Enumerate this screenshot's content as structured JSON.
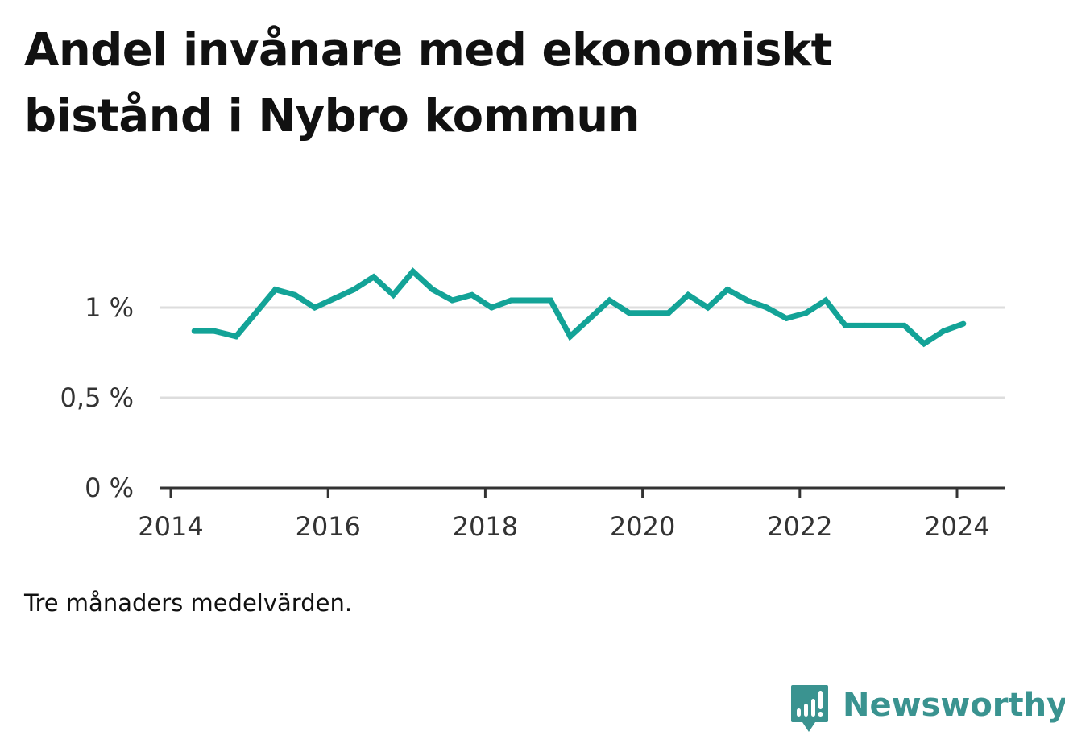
{
  "header": {
    "title": "Andel invånare med ekonomiskt bistånd i Nybro kommun"
  },
  "footer": {
    "note": "Tre månaders medelvärden.",
    "brand_name": "Newsworthy",
    "brand_color": "#3a9390",
    "brand_icon": "bar-chart-speech-bubble-icon"
  },
  "chart_data": {
    "type": "line",
    "title": "Andel invånare med ekonomiskt bistånd i Nybro kommun",
    "xlabel": "",
    "ylabel": "",
    "x_ticks": [
      "2014",
      "2016",
      "2018",
      "2020",
      "2022",
      "2024"
    ],
    "y_ticks": [
      "0 %",
      "0,5 %",
      "1 %"
    ],
    "ylim": [
      0,
      1.35
    ],
    "xlim": [
      2014,
      2024.6
    ],
    "grid": true,
    "series": [
      {
        "color": "#13a397",
        "points": [
          [
            2014.3,
            0.87
          ],
          [
            2014.55,
            0.87
          ],
          [
            2014.83,
            0.84
          ],
          [
            2015.08,
            0.97
          ],
          [
            2015.33,
            1.1
          ],
          [
            2015.58,
            1.07
          ],
          [
            2015.83,
            1.0
          ],
          [
            2016.08,
            1.05
          ],
          [
            2016.33,
            1.1
          ],
          [
            2016.58,
            1.17
          ],
          [
            2016.83,
            1.07
          ],
          [
            2017.08,
            1.2
          ],
          [
            2017.33,
            1.1
          ],
          [
            2017.58,
            1.04
          ],
          [
            2017.83,
            1.07
          ],
          [
            2018.08,
            1.0
          ],
          [
            2018.33,
            1.04
          ],
          [
            2018.58,
            1.04
          ],
          [
            2018.83,
            1.04
          ],
          [
            2019.08,
            0.84
          ],
          [
            2019.33,
            0.94
          ],
          [
            2019.58,
            1.04
          ],
          [
            2019.83,
            0.97
          ],
          [
            2020.08,
            0.97
          ],
          [
            2020.33,
            0.97
          ],
          [
            2020.58,
            1.07
          ],
          [
            2020.83,
            1.0
          ],
          [
            2021.08,
            1.1
          ],
          [
            2021.33,
            1.04
          ],
          [
            2021.58,
            1.0
          ],
          [
            2021.83,
            0.94
          ],
          [
            2022.08,
            0.97
          ],
          [
            2022.33,
            1.04
          ],
          [
            2022.58,
            0.9
          ],
          [
            2022.83,
            0.9
          ],
          [
            2023.08,
            0.9
          ],
          [
            2023.33,
            0.9
          ],
          [
            2023.58,
            0.8
          ],
          [
            2023.83,
            0.87
          ],
          [
            2024.08,
            0.91
          ]
        ]
      }
    ]
  }
}
